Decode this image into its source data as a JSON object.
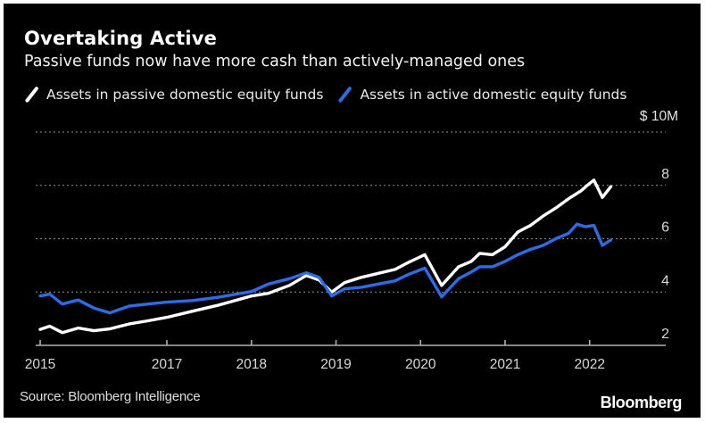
{
  "header": {
    "title": "Overtaking Active",
    "subtitle": "Passive funds now have more cash than actively-managed ones"
  },
  "legend": {
    "items": [
      {
        "label": "Assets in passive domestic equity funds",
        "color": "#ffffff"
      },
      {
        "label": "Assets in active domestic equity funds",
        "color": "#2e6ce6"
      }
    ]
  },
  "footer": {
    "source": "Source: Bloomberg Intelligence",
    "logo": "Bloomberg"
  },
  "chart_data": {
    "type": "line",
    "title": "Overtaking Active",
    "subtitle": "Passive funds now have more cash than actively-managed ones",
    "unit_label": "$ 10M",
    "background_color": "#000000",
    "grid_color": "#8f8f8f",
    "axis_color": "#b0b0b0",
    "label_color": "#d8d8d8",
    "ylim": [
      2,
      10
    ],
    "y_tick_labels": [
      2,
      4,
      6,
      8
    ],
    "y_gridlines": [
      4,
      6,
      8,
      10
    ],
    "x_tick_years": [
      2015,
      2017,
      2018,
      2019,
      2020,
      2021,
      2022
    ],
    "x_tick_labels": [
      "2015",
      "2017",
      "2018",
      "2019",
      "2020",
      "2021",
      "2022"
    ],
    "grid": "dotted-horizontal",
    "legend_position": "top-left",
    "series": [
      {
        "name": "Assets in passive domestic equity funds",
        "key": "passive",
        "color": "#ffffff",
        "points": [
          [
            2015.0,
            2.6
          ],
          [
            2015.15,
            2.72
          ],
          [
            2015.35,
            2.48
          ],
          [
            2015.6,
            2.65
          ],
          [
            2015.85,
            2.55
          ],
          [
            2016.1,
            2.62
          ],
          [
            2016.4,
            2.8
          ],
          [
            2016.7,
            2.92
          ],
          [
            2017.0,
            3.05
          ],
          [
            2017.3,
            3.28
          ],
          [
            2017.6,
            3.5
          ],
          [
            2018.0,
            3.85
          ],
          [
            2018.2,
            3.95
          ],
          [
            2018.45,
            4.25
          ],
          [
            2018.65,
            4.62
          ],
          [
            2018.8,
            4.45
          ],
          [
            2018.95,
            4.0
          ],
          [
            2019.1,
            4.35
          ],
          [
            2019.3,
            4.55
          ],
          [
            2019.5,
            4.7
          ],
          [
            2019.7,
            4.85
          ],
          [
            2019.85,
            5.1
          ],
          [
            2020.05,
            5.4
          ],
          [
            2020.25,
            4.25
          ],
          [
            2020.45,
            4.95
          ],
          [
            2020.6,
            5.15
          ],
          [
            2020.7,
            5.45
          ],
          [
            2020.85,
            5.4
          ],
          [
            2021.0,
            5.7
          ],
          [
            2021.15,
            6.25
          ],
          [
            2021.3,
            6.5
          ],
          [
            2021.45,
            6.85
          ],
          [
            2021.6,
            7.15
          ],
          [
            2021.75,
            7.5
          ],
          [
            2021.9,
            7.8
          ],
          [
            2021.97,
            8.0
          ],
          [
            2022.05,
            8.2
          ],
          [
            2022.15,
            7.55
          ],
          [
            2022.25,
            7.95
          ]
        ]
      },
      {
        "name": "Assets in active domestic equity funds",
        "key": "active",
        "color": "#2e6ce6",
        "points": [
          [
            2015.0,
            3.85
          ],
          [
            2015.15,
            3.92
          ],
          [
            2015.35,
            3.55
          ],
          [
            2015.6,
            3.7
          ],
          [
            2015.85,
            3.4
          ],
          [
            2016.1,
            3.22
          ],
          [
            2016.4,
            3.47
          ],
          [
            2016.7,
            3.55
          ],
          [
            2017.0,
            3.62
          ],
          [
            2017.3,
            3.68
          ],
          [
            2017.6,
            3.8
          ],
          [
            2018.0,
            4.02
          ],
          [
            2018.2,
            4.3
          ],
          [
            2018.45,
            4.5
          ],
          [
            2018.65,
            4.72
          ],
          [
            2018.8,
            4.55
          ],
          [
            2018.95,
            3.85
          ],
          [
            2019.1,
            4.12
          ],
          [
            2019.3,
            4.18
          ],
          [
            2019.5,
            4.3
          ],
          [
            2019.7,
            4.42
          ],
          [
            2019.85,
            4.65
          ],
          [
            2020.05,
            4.9
          ],
          [
            2020.25,
            3.82
          ],
          [
            2020.45,
            4.5
          ],
          [
            2020.6,
            4.75
          ],
          [
            2020.7,
            4.95
          ],
          [
            2020.85,
            4.95
          ],
          [
            2021.0,
            5.15
          ],
          [
            2021.15,
            5.4
          ],
          [
            2021.3,
            5.6
          ],
          [
            2021.45,
            5.75
          ],
          [
            2021.6,
            6.0
          ],
          [
            2021.75,
            6.2
          ],
          [
            2021.85,
            6.55
          ],
          [
            2021.95,
            6.45
          ],
          [
            2022.05,
            6.5
          ],
          [
            2022.15,
            5.75
          ],
          [
            2022.25,
            5.95
          ]
        ]
      }
    ]
  }
}
